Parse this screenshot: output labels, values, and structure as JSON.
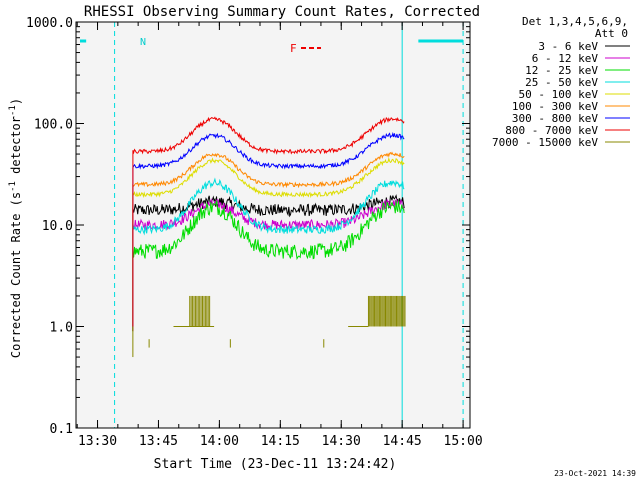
{
  "chart_data": {
    "type": "line",
    "title": "RHESSI Observing Summary Count Rates, Corrected",
    "xlabel": "Start Time (23-Dec-11 13:24:42)",
    "ylabel_main": "Corrected Count Rate (s",
    "ylabel_sup1": "-1",
    "ylabel_mid": " detector",
    "ylabel_sup2": "-1",
    "ylabel_end": ")",
    "y_scale": "log",
    "ylim": [
      0.1,
      1000
    ],
    "xlim_minutes": [
      0,
      97
    ],
    "x_ticks": [
      {
        "t": 5.3,
        "label": "13:30"
      },
      {
        "t": 20.3,
        "label": "13:45"
      },
      {
        "t": 35.3,
        "label": "14:00"
      },
      {
        "t": 50.3,
        "label": "14:15"
      },
      {
        "t": 65.3,
        "label": "14:30"
      },
      {
        "t": 80.3,
        "label": "14:45"
      },
      {
        "t": 95.3,
        "label": "15:00"
      }
    ],
    "y_ticks": [
      {
        "v": 0.1,
        "label": "0.1"
      },
      {
        "v": 1,
        "label": "1.0"
      },
      {
        "v": 10,
        "label": "10.0"
      },
      {
        "v": 100,
        "label": "100.0"
      },
      {
        "v": 1000,
        "label": "1000.0"
      }
    ],
    "legend": {
      "header1": "Det 1,3,4,5,6,9,",
      "header2": "Att 0",
      "placement": "right"
    },
    "series": [
      {
        "name": "3 - 6 keV",
        "color": "#000000",
        "base": 14,
        "peak": 17,
        "noise": 0.12,
        "start": 14,
        "end": 81
      },
      {
        "name": "6 - 12 keV",
        "color": "#cc00cc",
        "base": 10,
        "peak": 16,
        "noise": 0.1,
        "start": 14,
        "end": 81
      },
      {
        "name": "12 - 25 keV",
        "color": "#00dd00",
        "base": 5.5,
        "peak": 15,
        "noise": 0.15,
        "start": 14,
        "end": 81
      },
      {
        "name": "25 - 50 keV",
        "color": "#00dddd",
        "base": 9,
        "peak": 26,
        "noise": 0.08,
        "start": 14,
        "end": 81
      },
      {
        "name": "50 - 100 keV",
        "color": "#dddd00",
        "base": 20,
        "peak": 43,
        "noise": 0.04,
        "start": 14,
        "end": 81
      },
      {
        "name": "100 - 300 keV",
        "color": "#ff8800",
        "base": 25,
        "peak": 50,
        "noise": 0.04,
        "start": 14,
        "end": 81
      },
      {
        "name": "300 - 800 keV",
        "color": "#0000ff",
        "base": 38,
        "peak": 76,
        "noise": 0.04,
        "start": 14,
        "end": 81
      },
      {
        "name": "800 - 7000 keV",
        "color": "#ee0000",
        "base": 53,
        "peak": 110,
        "noise": 0.04,
        "start": 14,
        "end": 81
      },
      {
        "name": "7000 - 15000 keV",
        "color": "#888800",
        "base": 1.0,
        "peak": 1.6,
        "noise": 0.2,
        "start": 14,
        "end": 81
      }
    ],
    "annotations": {
      "night_label": "N",
      "flare_label": "F",
      "saa_segments_minutes": [
        [
          0,
          2.5
        ],
        [
          83.3,
          95.3
        ]
      ],
      "night_lines_minutes": [
        [
          0,
          9.5
        ],
        [
          80.3,
          95.3
        ]
      ]
    },
    "date_stamp": "23-Oct-2021 14:39"
  }
}
